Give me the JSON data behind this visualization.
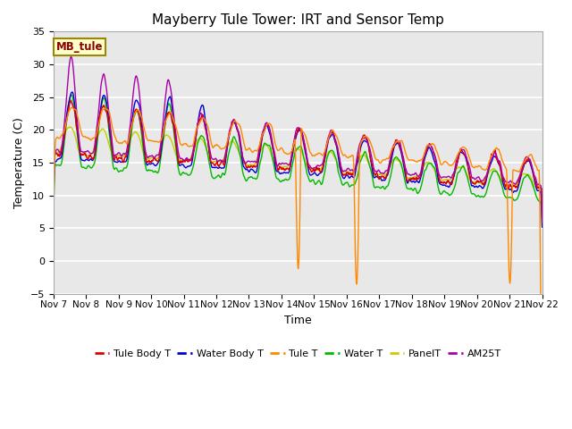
{
  "title": "Mayberry Tule Tower: IRT and Sensor Temp",
  "xlabel": "Time",
  "ylabel": "Temperature (C)",
  "ylim": [
    -5,
    35
  ],
  "xlim": [
    0,
    360
  ],
  "yticks": [
    -5,
    0,
    5,
    10,
    15,
    20,
    25,
    30,
    35
  ],
  "xtick_labels": [
    "Nov 7",
    "Nov 8",
    "Nov 9",
    "Nov 10",
    "Nov 11",
    "Nov 12",
    "Nov 13",
    "Nov 14",
    "Nov 15",
    "Nov 16",
    "Nov 17",
    "Nov 18",
    "Nov 19",
    "Nov 20",
    "Nov 21",
    "Nov 22"
  ],
  "xtick_positions": [
    0,
    24,
    48,
    72,
    96,
    120,
    144,
    168,
    192,
    216,
    240,
    264,
    288,
    312,
    336,
    360
  ],
  "series": {
    "Tule Body T": {
      "color": "#dd0000",
      "lw": 1.0
    },
    "Water Body T": {
      "color": "#0000dd",
      "lw": 1.0
    },
    "Tule T": {
      "color": "#ff8800",
      "lw": 1.0
    },
    "Water T": {
      "color": "#00bb00",
      "lw": 1.0
    },
    "PanelT": {
      "color": "#cccc00",
      "lw": 1.0
    },
    "AM25T": {
      "color": "#aa00aa",
      "lw": 1.0
    }
  },
  "legend_label": "MB_tule",
  "background_color": "#e8e8e8",
  "grid_color": "#ffffff",
  "title_fontsize": 11,
  "axis_fontsize": 9
}
